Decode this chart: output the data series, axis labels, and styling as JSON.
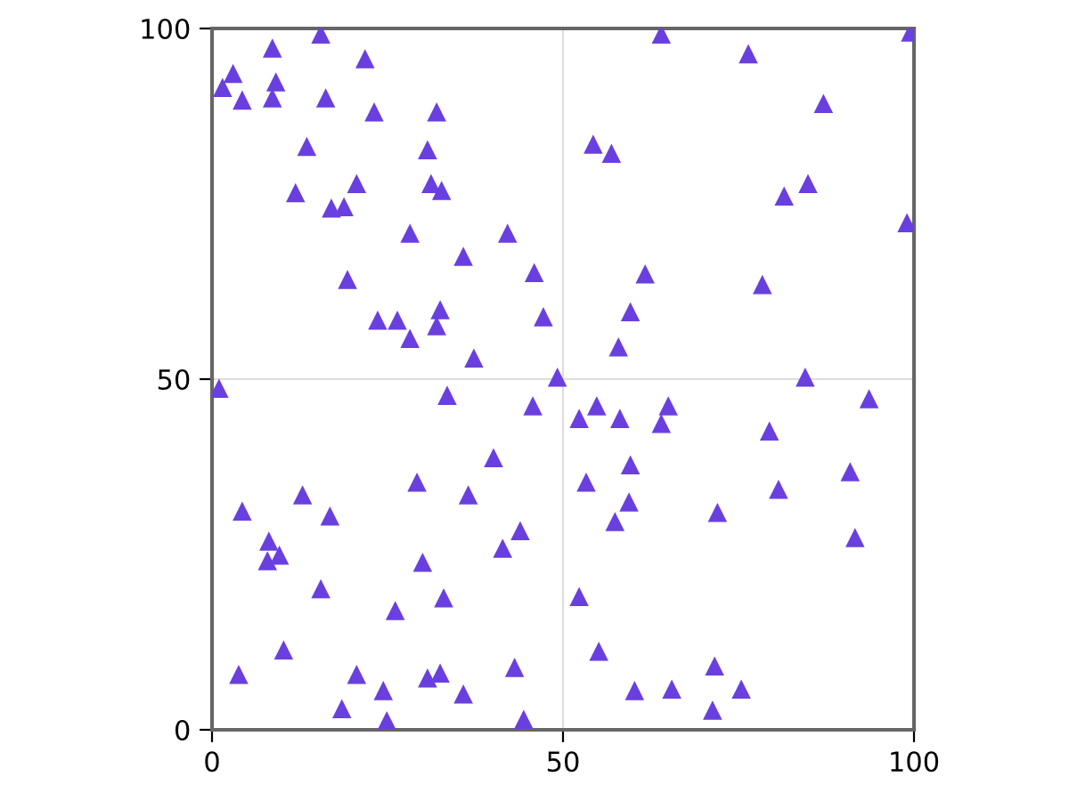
{
  "chart_data": {
    "type": "scatter",
    "marker": "triangle",
    "grid": true,
    "xlim": [
      0,
      100
    ],
    "ylim": [
      0,
      100
    ],
    "xticks": [
      0,
      50,
      100
    ],
    "yticks": [
      0,
      50,
      100
    ],
    "series": [
      {
        "color": "#6a3fe0",
        "x": [
          1.5,
          3,
          4.3,
          8.6,
          9.1,
          8.6,
          15.5,
          16.2,
          21.8,
          23.1,
          13.5,
          30.7,
          32,
          11.9,
          17,
          18.8,
          20.6,
          28.2,
          31.2,
          32.7,
          19.3,
          23.6,
          26.4,
          28.2,
          32.5,
          32,
          35.8,
          42.1,
          37.3,
          45.9,
          47.2,
          49.2,
          1,
          33.5,
          45.7,
          54.3,
          56.9,
          64,
          76.4,
          87.1,
          81.5,
          84.9,
          61.7,
          59.6,
          57.9,
          78.4,
          99,
          99.5,
          52.3,
          54.8,
          58.1,
          64,
          65,
          59.6,
          79.4,
          84.5,
          93.6,
          53.3,
          57.4,
          59.4,
          72,
          80.7,
          90.9,
          91.6,
          4.3,
          12.9,
          29.2,
          36.5,
          8.1,
          7.9,
          9.6,
          16.8,
          15.5,
          30,
          33,
          26.1,
          41.4,
          43.9,
          40.1,
          52.3,
          10.2,
          3.8,
          20.6,
          18.5,
          24.4,
          24.9,
          30.7,
          32.5,
          35.8,
          43.1,
          44.4,
          55.1,
          60.2,
          65.5,
          71.6,
          71.3,
          75.4
        ],
        "values": [
          91.6,
          93.6,
          89.8,
          97.2,
          92.4,
          90.1,
          99.2,
          90.1,
          95.7,
          88.1,
          83.2,
          82.7,
          88.1,
          76.6,
          74.4,
          74.6,
          77.9,
          70.8,
          77.9,
          76.9,
          64.2,
          58.4,
          58.4,
          55.8,
          59.9,
          57.6,
          67.5,
          70.8,
          53,
          65.2,
          58.9,
          50.3,
          48.7,
          47.7,
          46.2,
          83.5,
          82.2,
          99.2,
          96.4,
          89.3,
          76.1,
          77.9,
          65,
          59.6,
          54.6,
          63.5,
          72.3,
          99.5,
          44.4,
          46.2,
          44.4,
          43.7,
          46.2,
          37.8,
          42.6,
          50.3,
          47.2,
          35.3,
          29.7,
          32.5,
          31,
          34.3,
          36.8,
          27.4,
          31.2,
          33.5,
          35.3,
          33.5,
          26.9,
          24.1,
          24.9,
          30.5,
          20.1,
          23.9,
          18.8,
          17,
          25.9,
          28.4,
          38.8,
          19,
          11.4,
          7.9,
          7.9,
          3,
          5.6,
          1.3,
          7.4,
          8.1,
          5.1,
          8.9,
          1.5,
          11.2,
          5.6,
          5.8,
          9.1,
          2.8,
          5.8
        ]
      }
    ]
  }
}
